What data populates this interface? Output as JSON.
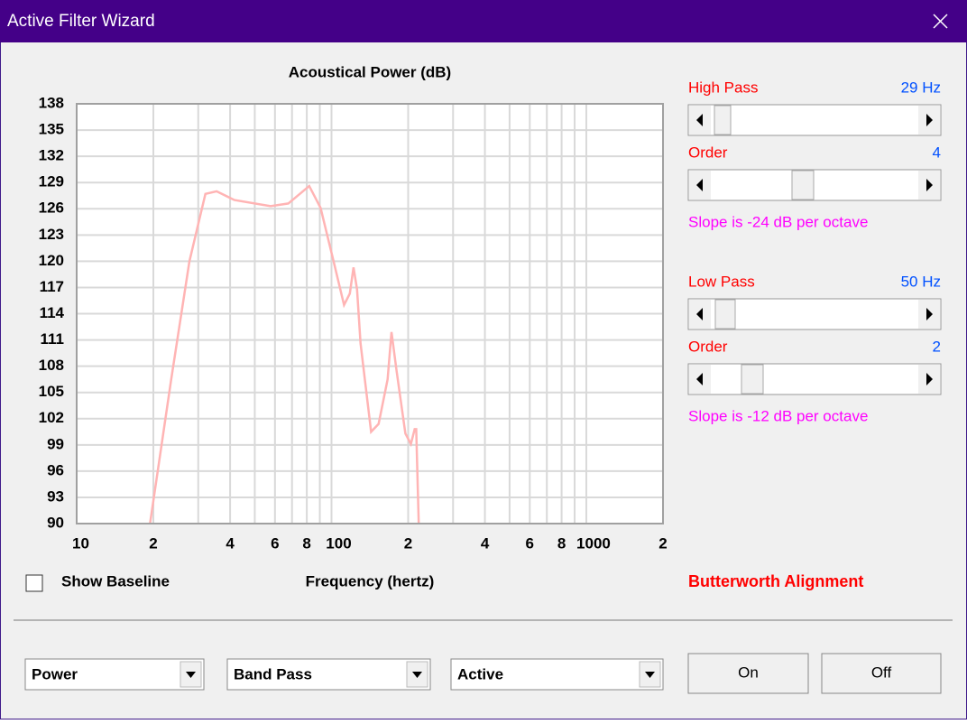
{
  "window": {
    "title": "Active Filter Wizard"
  },
  "chart_data": {
    "type": "line",
    "title": "Acoustical Power (dB)",
    "x_label": "Frequency (hertz)",
    "x": [
      19.4,
      23.5,
      27.7,
      32,
      35.4,
      41.6,
      57.7,
      67.7,
      81.8,
      90.6,
      101.9,
      112,
      118,
      122,
      126,
      130,
      143,
      153,
      166,
      172,
      180,
      195,
      205,
      212,
      215,
      220
    ],
    "values": [
      90,
      106.5,
      120,
      127.7,
      128,
      127,
      126.3,
      126.6,
      128.6,
      126.1,
      120,
      115,
      116.3,
      119.3,
      116.8,
      110.6,
      100.5,
      101.4,
      106.5,
      111.9,
      107.5,
      100.3,
      99.1,
      100.8,
      100.8,
      90
    ],
    "color": "#ffb4b4",
    "x_log": true,
    "grid": true,
    "xlim": [
      10,
      2000
    ],
    "ylim": [
      90,
      138
    ],
    "xticks": [
      10,
      {
        "value": 20,
        "label": "2"
      },
      {
        "value": 40,
        "label": "4"
      },
      {
        "value": 60,
        "label": "6"
      },
      {
        "value": 80,
        "label": "8"
      },
      100,
      {
        "value": 200,
        "label": "2"
      },
      {
        "value": 400,
        "label": "4"
      },
      {
        "value": 600,
        "label": "6"
      },
      {
        "value": 800,
        "label": "8"
      },
      1000,
      {
        "value": 2000,
        "label": "2"
      }
    ],
    "xminor": [
      30,
      50,
      70,
      90,
      300,
      500,
      700,
      900
    ],
    "yticks": [
      90,
      93,
      96,
      99,
      102,
      105,
      108,
      111,
      114,
      117,
      120,
      123,
      126,
      129,
      132,
      135,
      138
    ]
  },
  "controls": {
    "high_pass": {
      "label": "High Pass",
      "value": "29 Hz"
    },
    "high_order": {
      "label": "Order",
      "value": "4"
    },
    "high_slope": "Slope is -24 dB per octave",
    "low_pass": {
      "label": "Low Pass",
      "value": "50 Hz"
    },
    "low_order": {
      "label": "Order",
      "value": "2"
    },
    "low_slope": "Slope is -12 dB per octave",
    "alignment": "Butterworth Alignment",
    "baseline": "Show Baseline",
    "dropdowns": [
      "Power",
      "Band Pass",
      "Active"
    ],
    "buttons": [
      "On",
      "Off"
    ]
  }
}
